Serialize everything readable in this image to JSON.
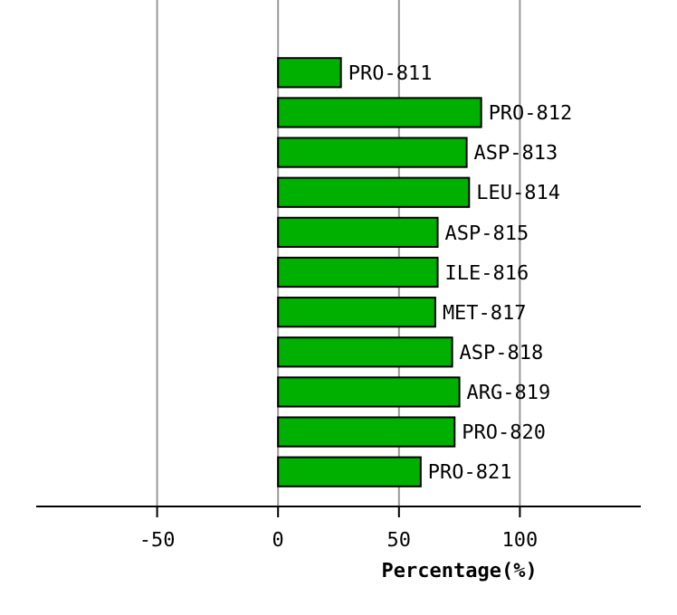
{
  "chart_data": {
    "type": "bar",
    "orientation": "horizontal",
    "xlabel": "Percentage(%)",
    "categories": [
      "PRO-811",
      "PRO-812",
      "ASP-813",
      "LEU-814",
      "ASP-815",
      "ILE-816",
      "MET-817",
      "ASP-818",
      "ARG-819",
      "PRO-820",
      "PRO-821"
    ],
    "values": [
      26,
      84,
      78,
      79,
      66,
      66,
      65,
      72,
      75,
      73,
      59
    ],
    "color": "#00b000",
    "xlim": [
      -100,
      150
    ],
    "xticks": [
      -50,
      0,
      50,
      100
    ],
    "grid": "x"
  }
}
